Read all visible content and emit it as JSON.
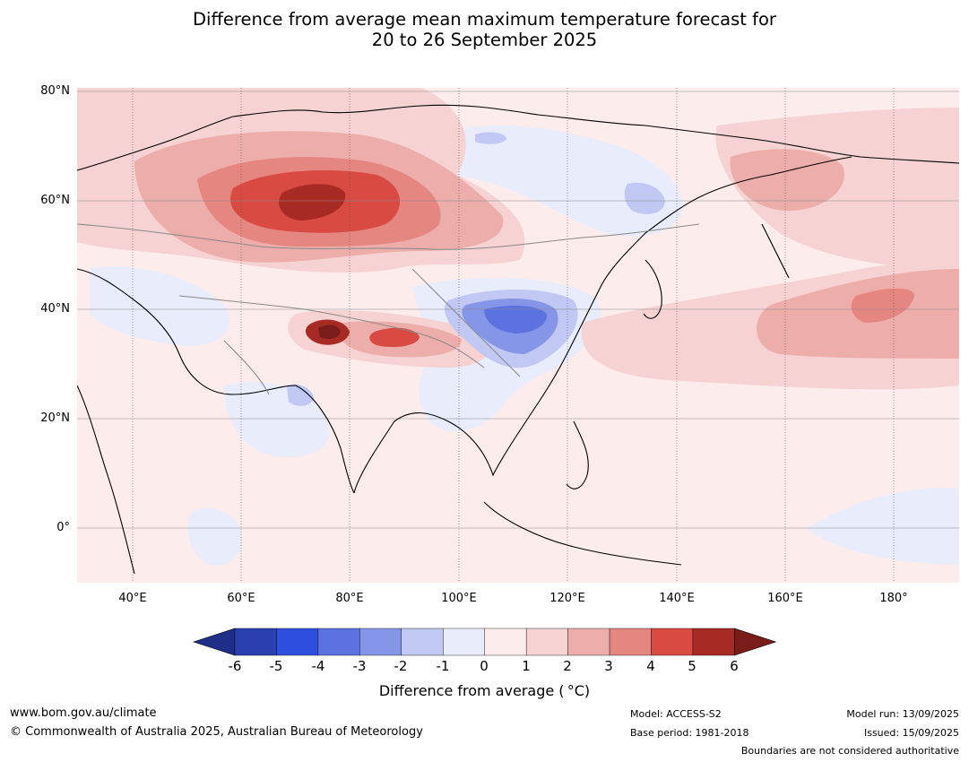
{
  "title": {
    "line1": "Difference from average mean maximum temperature forecast for",
    "line2": "20 to 26 September 2025"
  },
  "map": {
    "lat_labels": [
      "80°N",
      "60°N",
      "40°N",
      "20°N",
      "0°"
    ],
    "lon_labels": [
      "40°E",
      "60°E",
      "80°E",
      "100°E",
      "120°E",
      "140°E",
      "160°E",
      "180°"
    ],
    "extent": {
      "lon_min": 30,
      "lon_max": 190,
      "lat_min": -10,
      "lat_max": 80
    },
    "background_anomaly_c": "0 to 1",
    "anomaly_regions": [
      {
        "name": "west-siberia-warm",
        "value_range": "5 to 6",
        "max": "above 5"
      },
      {
        "name": "tibetan-plateau-warm",
        "value_range": "above 6",
        "max": "above 6"
      },
      {
        "name": "central-china-cool",
        "value_range": "-4 to -3"
      },
      {
        "name": "north-pacific-warm",
        "value_range": "2 to 3"
      },
      {
        "name": "east-siberia-cool",
        "value_range": "-2 to -1"
      }
    ]
  },
  "colorbar": {
    "ticks": [
      "-6",
      "-5",
      "-4",
      "-3",
      "-2",
      "-1",
      "0",
      "1",
      "2",
      "3",
      "4",
      "5",
      "6"
    ],
    "colors": [
      "#1f2f87",
      "#2a3fb0",
      "#2f4fe0",
      "#5b72e0",
      "#8596e8",
      "#c0c8f3",
      "#e8ecfb",
      "#fdecec",
      "#f6d2d2",
      "#edaeab",
      "#e58681",
      "#d84a42",
      "#a82a25",
      "#7a1c1a"
    ],
    "label": "Difference from average ( °C)"
  },
  "footer": {
    "website": "www.bom.gov.au/climate",
    "copyright": "© Commonwealth of Australia 2025, Australian Bureau of Meteorology",
    "model": "Model: ACCESS-S2",
    "base_period": "Base period: 1981-2018",
    "model_run": "Model run: 13/09/2025",
    "issued": "Issued: 15/09/2025",
    "disclaimer": "Boundaries are not considered authoritative"
  }
}
